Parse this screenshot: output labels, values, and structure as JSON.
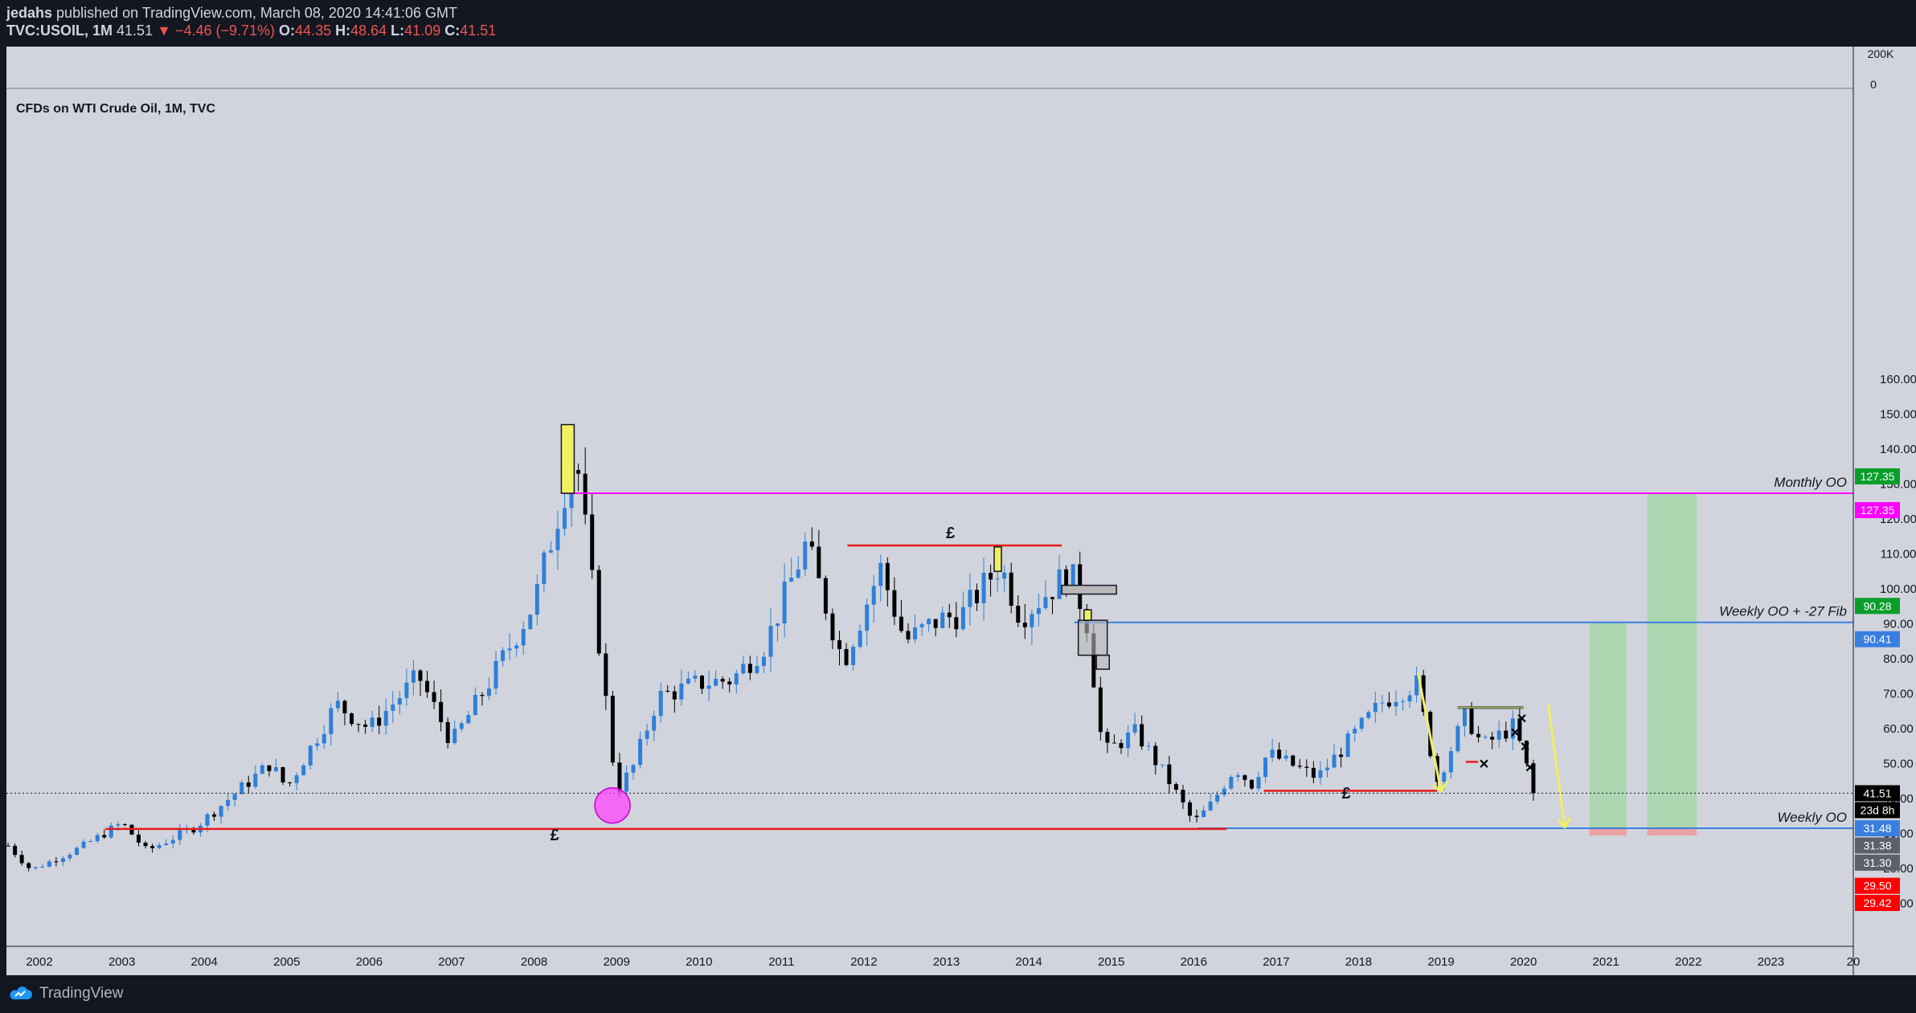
{
  "header": {
    "author": "jedahs",
    "published_text": "published on TradingView.com, March 08, 2020 14:41:06 GMT",
    "symbol": "TVC:USOIL, 1M",
    "last": "41.51",
    "change": "−4.46 (−9.71%)",
    "o_label": "O:",
    "o_value": "44.35",
    "h_label": "H:",
    "h_value": "48.64",
    "l_label": "L:",
    "l_value": "41.09",
    "c_label": "C:",
    "c_value": "41.51"
  },
  "footer": {
    "brand": "TradingView"
  },
  "colors": {
    "background": "#d1d4dc",
    "up": "#2e7fd8",
    "down": "#000000",
    "magenta": "#ff00ff",
    "red": "#e81a1a",
    "blue": "#3a7fe0",
    "green_zone": "#a5d6a7",
    "red_zone": "#ef9a9a",
    "yellow": "#f0f060"
  },
  "chart_data": {
    "type": "candlestick",
    "title": "CFDs on WTI Crude Oil, 1M, TVC",
    "ylim": [
      0,
      165
    ],
    "x_range": [
      2001.6,
      2024.0
    ],
    "y_ticks": [
      "160.00",
      "150.00",
      "140.00",
      "130.00",
      "120.00",
      "110.00",
      "100.00",
      "90.00",
      "80.00",
      "70.00",
      "60.00",
      "50.00",
      "40.00",
      "30.00",
      "20.00",
      "10.00"
    ],
    "x_ticks": [
      "2002",
      "2003",
      "2004",
      "2005",
      "2006",
      "2007",
      "2008",
      "2009",
      "2010",
      "2011",
      "2012",
      "2013",
      "2014",
      "2015",
      "2016",
      "2017",
      "2018",
      "2019",
      "2020",
      "2021",
      "2022",
      "2023",
      "20"
    ],
    "volume_axis": [
      "200K",
      "0"
    ],
    "key_points": [
      {
        "t": 2001.6,
        "c": 27
      },
      {
        "t": 2001.9,
        "c": 19.5
      },
      {
        "t": 2002.5,
        "c": 26
      },
      {
        "t": 2003.0,
        "c": 33
      },
      {
        "t": 2003.3,
        "c": 25
      },
      {
        "t": 2003.9,
        "c": 32
      },
      {
        "t": 2004.8,
        "c": 50
      },
      {
        "t": 2005.0,
        "c": 43
      },
      {
        "t": 2005.6,
        "c": 67
      },
      {
        "t": 2006.0,
        "c": 60
      },
      {
        "t": 2006.6,
        "c": 75
      },
      {
        "t": 2007.0,
        "c": 56
      },
      {
        "t": 2007.5,
        "c": 75
      },
      {
        "t": 2008.0,
        "c": 96
      },
      {
        "t": 2008.5,
        "c": 140
      },
      {
        "t": 2008.7,
        "c": 102
      },
      {
        "t": 2009.0,
        "c": 42
      },
      {
        "t": 2009.2,
        "c": 49
      },
      {
        "t": 2009.5,
        "c": 69
      },
      {
        "t": 2010.0,
        "c": 73
      },
      {
        "t": 2010.4,
        "c": 74
      },
      {
        "t": 2010.8,
        "c": 84
      },
      {
        "t": 2011.3,
        "c": 113
      },
      {
        "t": 2011.75,
        "c": 79
      },
      {
        "t": 2012.2,
        "c": 106
      },
      {
        "t": 2012.5,
        "c": 85
      },
      {
        "t": 2012.9,
        "c": 91
      },
      {
        "t": 2013.2,
        "c": 93
      },
      {
        "t": 2013.65,
        "c": 107
      },
      {
        "t": 2013.9,
        "c": 92
      },
      {
        "t": 2014.5,
        "c": 105
      },
      {
        "t": 2014.7,
        "c": 91
      },
      {
        "t": 2014.9,
        "c": 53
      },
      {
        "t": 2015.3,
        "c": 59
      },
      {
        "t": 2015.7,
        "c": 45
      },
      {
        "t": 2016.0,
        "c": 33
      },
      {
        "t": 2016.2,
        "c": 38
      },
      {
        "t": 2016.5,
        "c": 49
      },
      {
        "t": 2016.7,
        "c": 44
      },
      {
        "t": 2016.9,
        "c": 53
      },
      {
        "t": 2017.5,
        "c": 46
      },
      {
        "t": 2017.9,
        "c": 57
      },
      {
        "t": 2018.3,
        "c": 68
      },
      {
        "t": 2018.7,
        "c": 73
      },
      {
        "t": 2018.95,
        "c": 45
      },
      {
        "t": 2019.3,
        "c": 64
      },
      {
        "t": 2019.5,
        "c": 55
      },
      {
        "t": 2019.9,
        "c": 61
      },
      {
        "t": 2020.0,
        "c": 51
      },
      {
        "t": 2020.17,
        "c": 41.51
      }
    ],
    "levels": [
      {
        "name": "Monthly OO",
        "value": 127.35,
        "color": "#ff00ff",
        "from": 2008.35,
        "to": 2024.0
      },
      {
        "name": "Weekly OO + -27 Fib",
        "value": 90.41,
        "color": "#3a7fe0",
        "from": 2014.55,
        "to": 2024.0
      },
      {
        "name": "Weekly OO",
        "value": 31.48,
        "color": "#3a7fe0",
        "from": 2016.05,
        "to": 2024.0
      }
    ],
    "red_lines": [
      {
        "value": 31.3,
        "from": 2002.8,
        "to": 2016.4
      },
      {
        "value": 112.4,
        "from": 2011.8,
        "to": 2014.4
      },
      {
        "value": 42.2,
        "from": 2016.85,
        "to": 2018.95
      }
    ],
    "pound_marks": [
      {
        "label": "£",
        "t": 2008.25,
        "y": 28
      },
      {
        "label": "£",
        "t": 2013.05,
        "y": 114.5
      },
      {
        "label": "£",
        "t": 2017.85,
        "y": 40
      }
    ],
    "price_labels": [
      {
        "text": "127.35",
        "value": 127.35,
        "bg": "#0a9e2a",
        "fg": "#ffffff",
        "offset": -1
      },
      {
        "text": "127.35",
        "value": 127.35,
        "bg": "#ff00ff",
        "fg": "#ffffff",
        "offset": 1
      },
      {
        "text": "90.28",
        "value": 90.28,
        "bg": "#0a9e2a",
        "fg": "#ffffff",
        "offset": -1
      },
      {
        "text": "90.41",
        "value": 90.41,
        "bg": "#3a7fe0",
        "fg": "#ffffff",
        "offset": 1
      },
      {
        "text": "41.51",
        "value": 41.51,
        "bg": "#000000",
        "fg": "#ffffff",
        "offset": 0
      },
      {
        "text": "23d 8h",
        "value": 41.51,
        "bg": "#000000",
        "fg": "#ffffff",
        "offset": 1
      },
      {
        "text": "31.48",
        "value": 31.48,
        "bg": "#3a7fe0",
        "fg": "#ffffff",
        "offset": 0
      },
      {
        "text": "31.38",
        "value": 31.38,
        "bg": "#5d606b",
        "fg": "#ffffff",
        "offset": 1
      },
      {
        "text": "31.30",
        "value": 31.3,
        "bg": "#5d606b",
        "fg": "#ffffff",
        "offset": 2
      },
      {
        "text": "29.50",
        "value": 29.5,
        "bg": "#ff0000",
        "fg": "#ffffff",
        "offset": 3
      },
      {
        "text": "29.42",
        "value": 29.42,
        "bg": "#ff0000",
        "fg": "#ffffff",
        "offset": 4
      }
    ]
  }
}
